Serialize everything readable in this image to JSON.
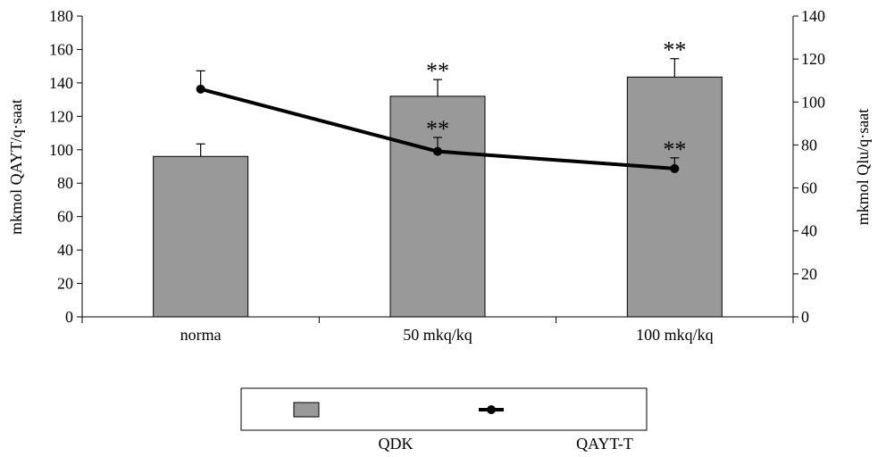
{
  "chart_data": {
    "type": "bar",
    "categories": [
      "norma",
      "50 mkq/kq",
      "100 mkq/kq"
    ],
    "ylabel": "mkmol QAYT/q·saat",
    "y2label": "mkmol Qlu/q·saat",
    "ylim": [
      0,
      180
    ],
    "y2lim": [
      0,
      140
    ],
    "yticks": [
      0,
      20,
      40,
      60,
      80,
      100,
      120,
      140,
      160,
      180
    ],
    "y2ticks": [
      0,
      20,
      40,
      60,
      80,
      100,
      120,
      140
    ],
    "grid": false,
    "legend_position": "bottom",
    "series": [
      {
        "name": "QDK",
        "kind": "bar",
        "axis": "left",
        "values": [
          96,
          132,
          143.5
        ],
        "errors": [
          7.5,
          10,
          11
        ],
        "annotations": [
          "",
          "**",
          "**"
        ],
        "color": "#999999"
      },
      {
        "name": "QAYT-T",
        "kind": "line",
        "axis": "right",
        "values": [
          106,
          77,
          69
        ],
        "errors": [
          8.5,
          6.5,
          5
        ],
        "annotations": [
          "",
          "**",
          "**"
        ],
        "color": "#000000"
      }
    ]
  }
}
